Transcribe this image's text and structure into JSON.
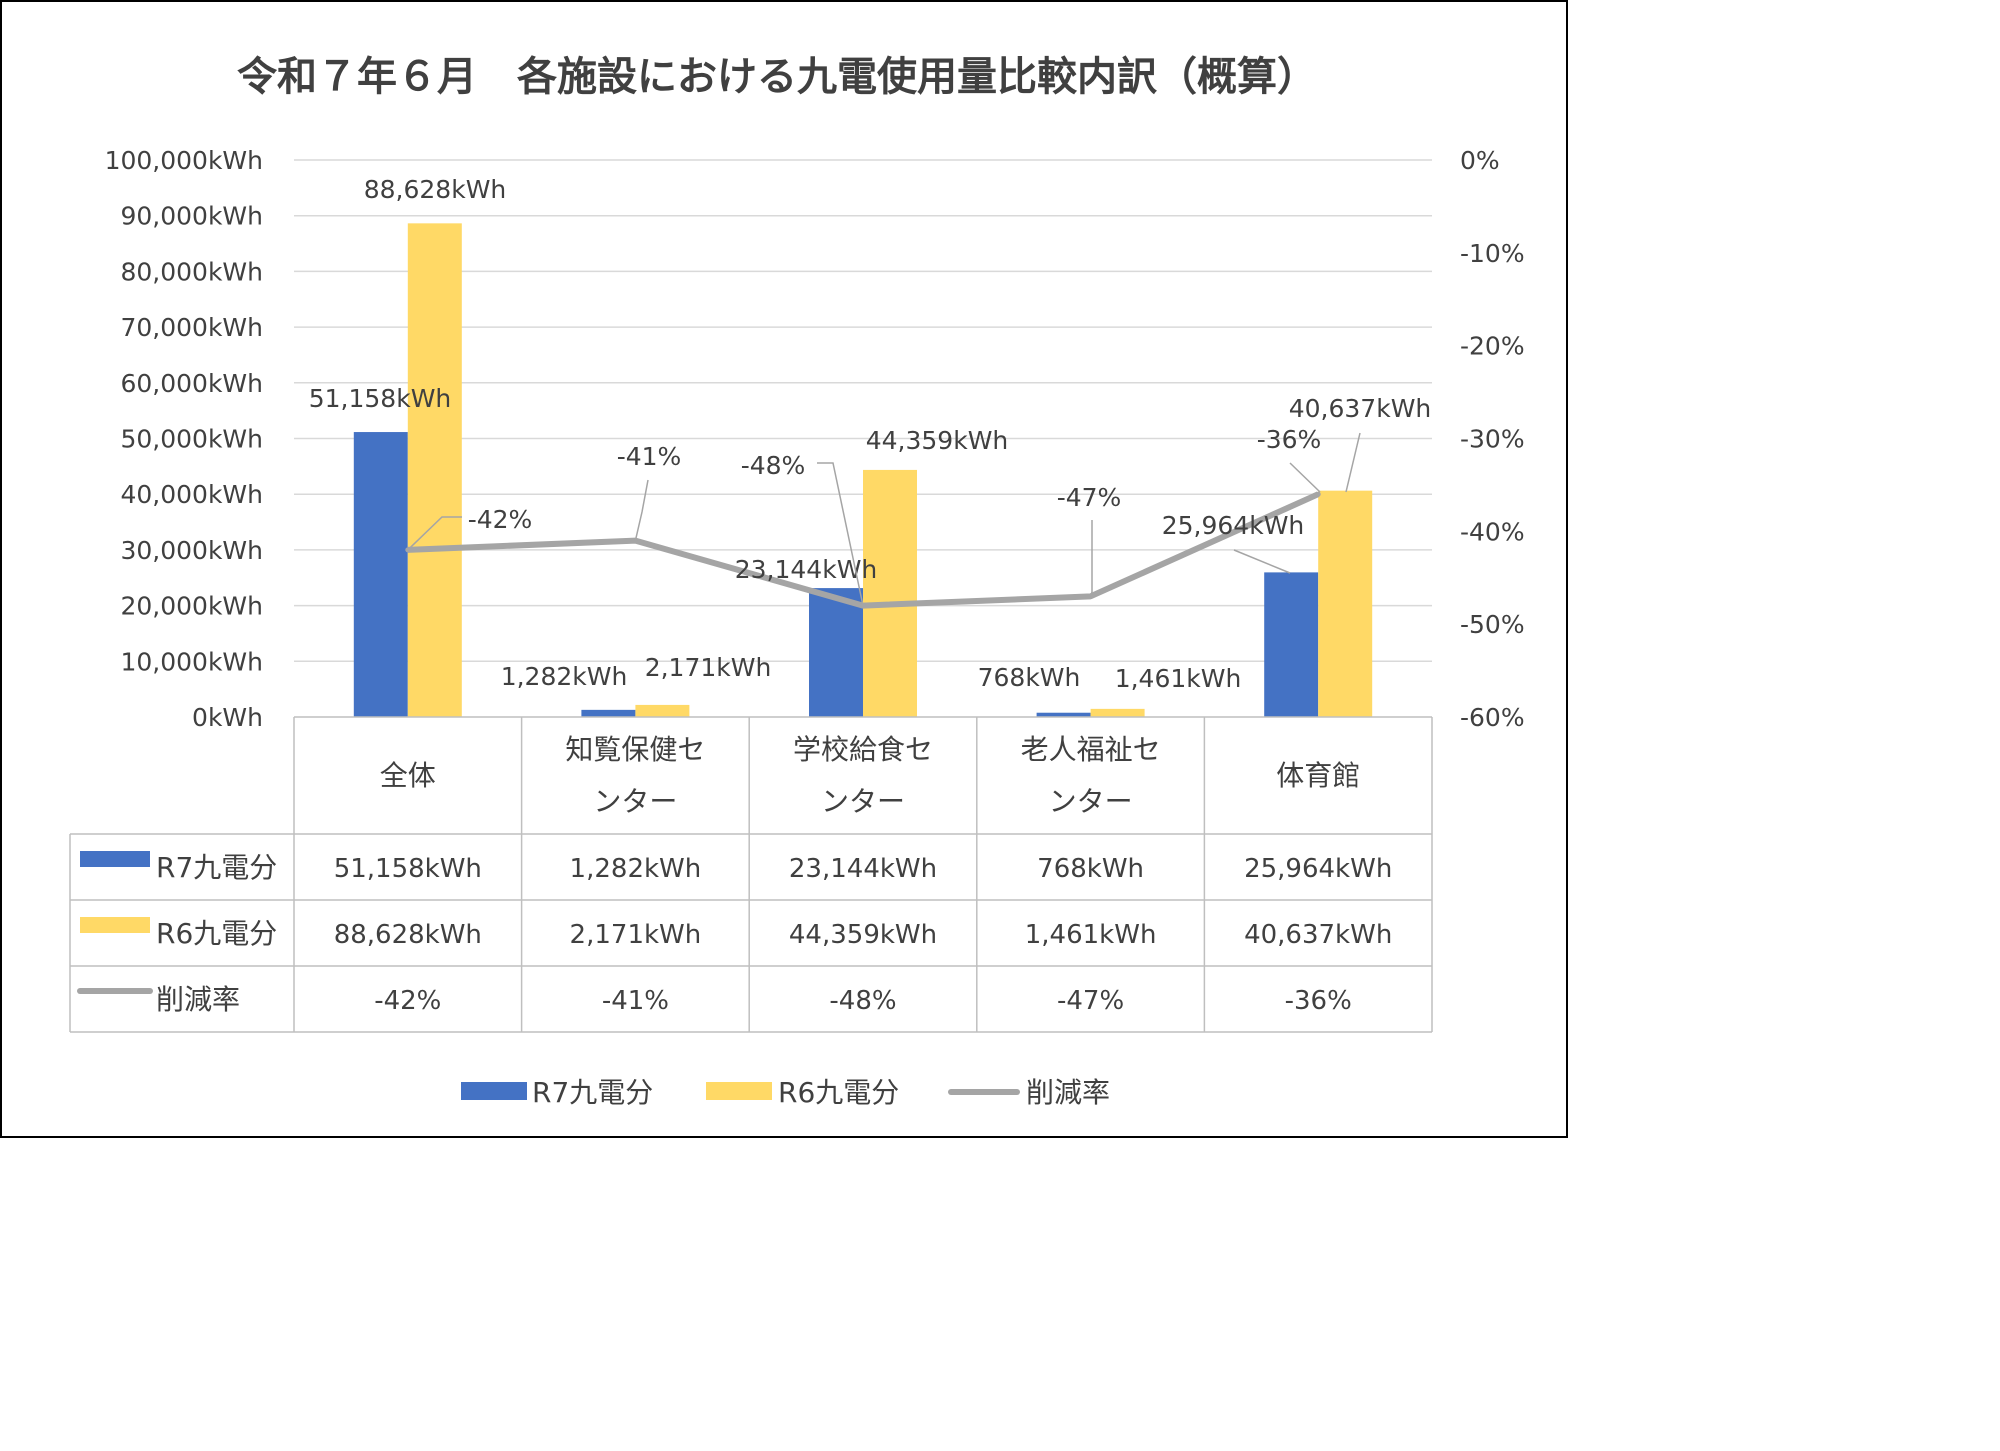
{
  "chart_data": {
    "type": "bar",
    "title": "令和７年６月　各施設における九電使用量比較内訳（概算）",
    "categories": [
      [
        "全体"
      ],
      [
        "知覧保健セ",
        "ンター"
      ],
      [
        "学校給食セ",
        "ンター"
      ],
      [
        "老人福祉セ",
        "ンター"
      ],
      [
        "体育館"
      ]
    ],
    "series": [
      {
        "name": "R7九電分",
        "type": "bar",
        "color": "#4472C4",
        "values": [
          51158,
          1282,
          23144,
          768,
          25964
        ],
        "labels": [
          "51,158kWh",
          "1,282kWh",
          "23,144kWh",
          "768kWh",
          "25,964kWh"
        ]
      },
      {
        "name": "R6九電分",
        "type": "bar",
        "color": "#FFD966",
        "values": [
          88628,
          2171,
          44359,
          1461,
          40637
        ],
        "labels": [
          "88,628kWh",
          "2,171kWh",
          "44,359kWh",
          "1,461kWh",
          "40,637kWh"
        ]
      },
      {
        "name": "削減率",
        "type": "line",
        "axis": "secondary",
        "color": "#A5A5A5",
        "values": [
          -42,
          -41,
          -48,
          -47,
          -36
        ],
        "labels": [
          "-42%",
          "-41%",
          "-48%",
          "-47%",
          "-36%"
        ]
      }
    ],
    "y_axis": {
      "range": [
        0,
        100000
      ],
      "ticks": [
        "0kWh",
        "10,000kWh",
        "20,000kWh",
        "30,000kWh",
        "40,000kWh",
        "50,000kWh",
        "60,000kWh",
        "70,000kWh",
        "80,000kWh",
        "90,000kWh",
        "100,000kWh"
      ]
    },
    "y2_axis": {
      "range": [
        -60,
        0
      ],
      "ticks": [
        "-60%",
        "-50%",
        "-40%",
        "-30%",
        "-20%",
        "-10%",
        "0%"
      ]
    },
    "grid": true,
    "data_table": true,
    "legend": "bottom"
  }
}
